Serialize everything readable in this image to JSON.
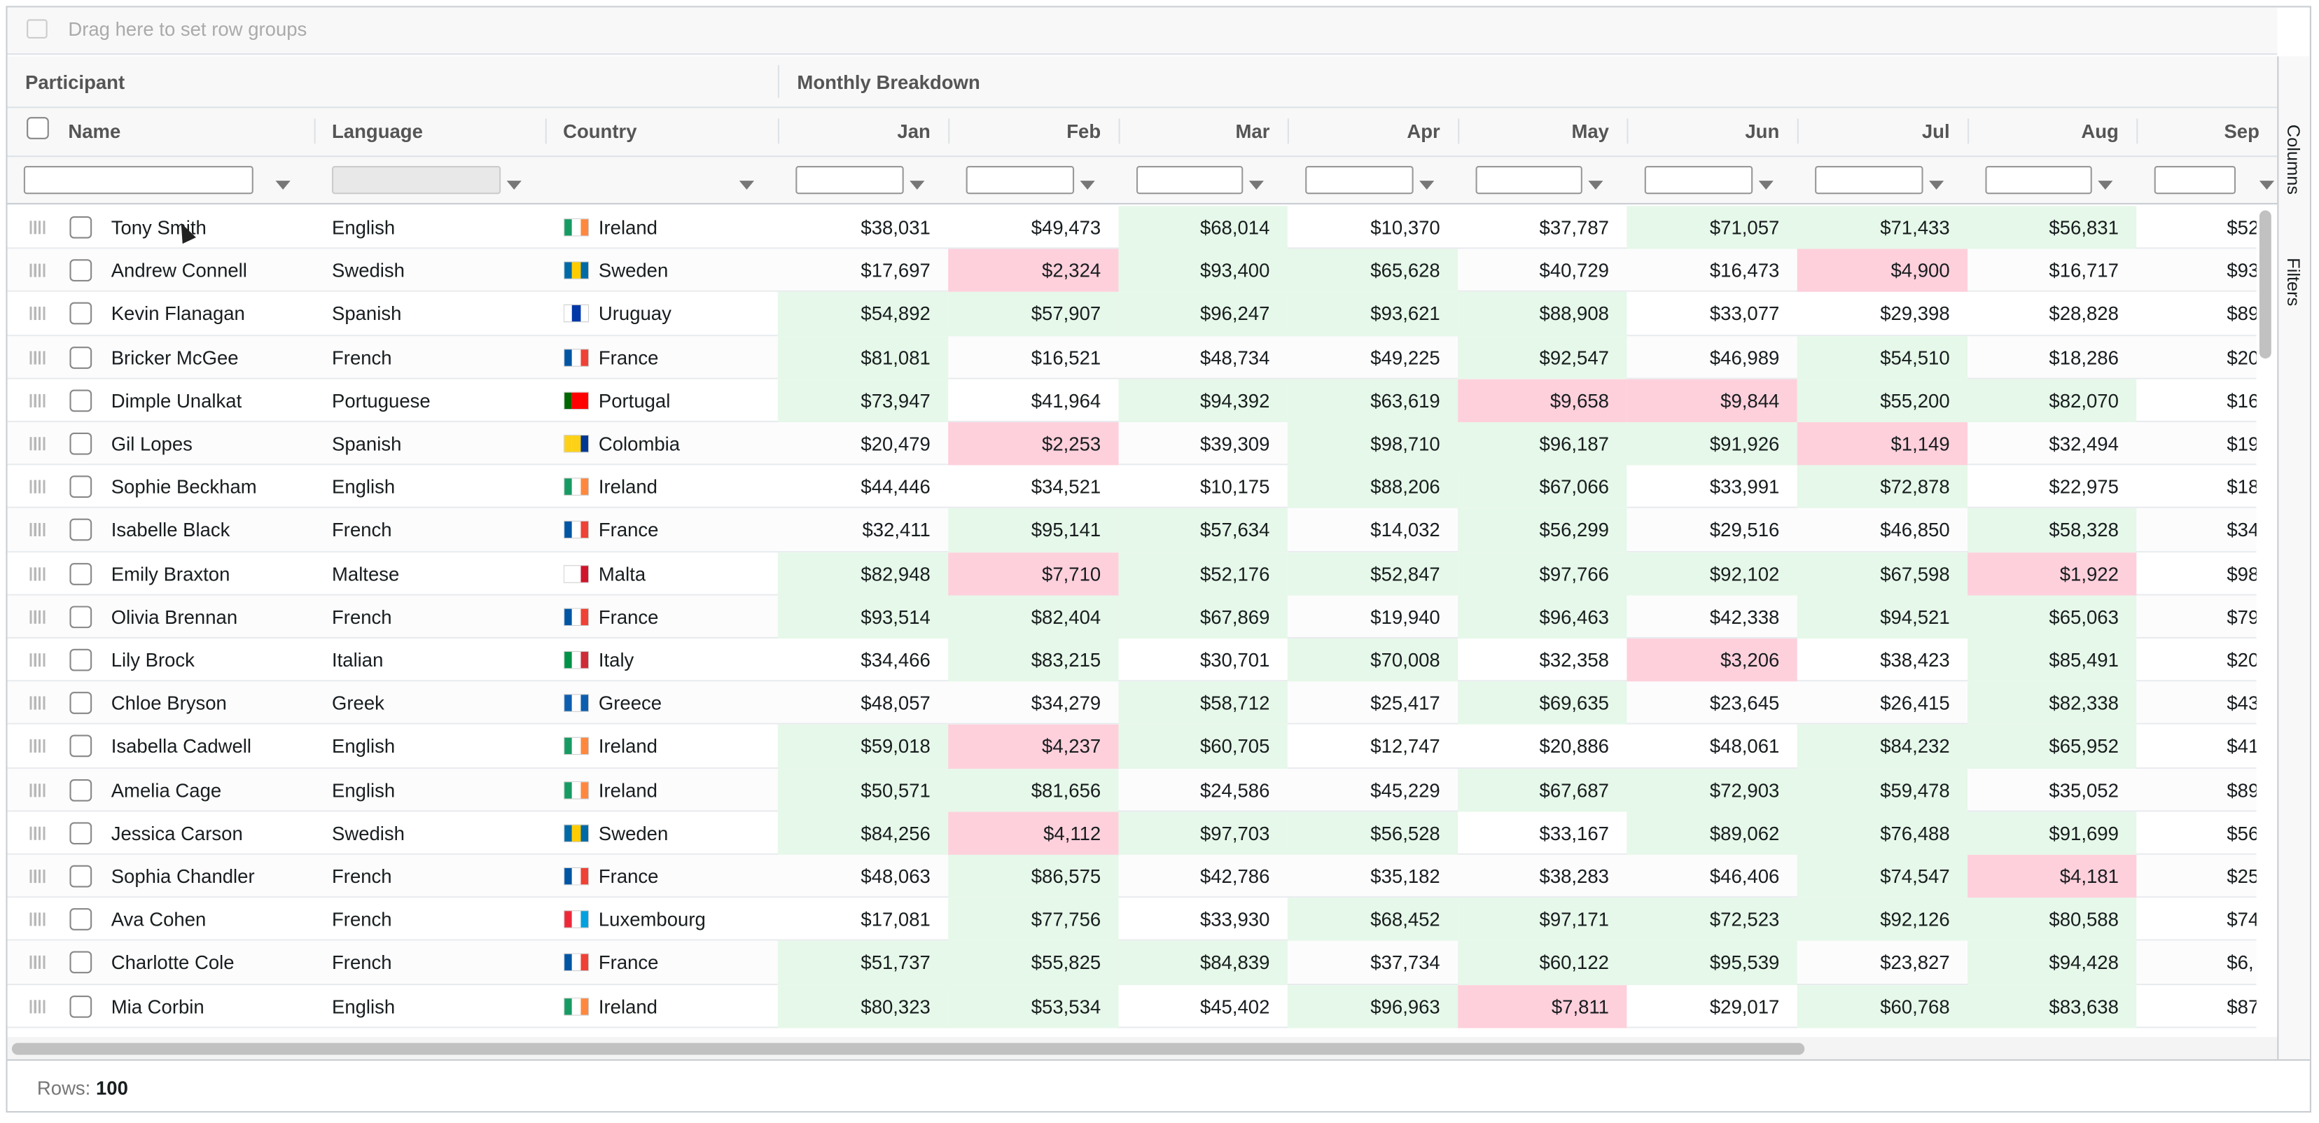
{
  "header": {
    "drop_zone_text": "Drag here to set row groups"
  },
  "side": {
    "tabs": [
      "Columns",
      "Filters"
    ]
  },
  "footer": {
    "label": "Rows:",
    "value": "100"
  },
  "flags": {
    "Ireland": [
      "#169b62",
      "#ffffff",
      "#ff883e"
    ],
    "Sweden": [
      "#006aa7",
      "#fecc00",
      "#006aa7"
    ],
    "Uruguay": [
      "#ffffff",
      "#0038a8",
      "#ffffff"
    ],
    "France": [
      "#0055a4",
      "#ffffff",
      "#ef4135"
    ],
    "Portugal": [
      "#006600",
      "#ff0000",
      "#ff0000"
    ],
    "Colombia": [
      "#fcd116",
      "#fcd116",
      "#003893"
    ],
    "Malta": [
      "#ffffff",
      "#ffffff",
      "#cf142b"
    ],
    "Italy": [
      "#009246",
      "#ffffff",
      "#ce2b37"
    ],
    "Greece": [
      "#0d5eaf",
      "#ffffff",
      "#0d5eaf"
    ],
    "Luxembourg": [
      "#ed2939",
      "#ffffff",
      "#00a1de"
    ]
  },
  "table": {
    "group_headers": [
      "Participant",
      "Monthly Breakdown"
    ],
    "columns": [
      "Name",
      "Language",
      "Country",
      "Jan",
      "Feb",
      "Mar",
      "Apr",
      "May",
      "Jun",
      "Jul",
      "Aug",
      "Sep"
    ],
    "rows": [
      {
        "name": "Tony Smith",
        "language": "English",
        "country": "Ireland",
        "months": [
          "$38,031",
          "$49,473",
          "$68,014",
          "$10,370",
          "$37,787",
          "$71,057",
          "$71,433",
          "$56,831",
          "$52,"
        ]
      },
      {
        "name": "Andrew Connell",
        "language": "Swedish",
        "country": "Sweden",
        "months": [
          "$17,697",
          "$2,324",
          "$93,400",
          "$65,628",
          "$40,729",
          "$16,473",
          "$4,900",
          "$16,717",
          "$93,"
        ]
      },
      {
        "name": "Kevin Flanagan",
        "language": "Spanish",
        "country": "Uruguay",
        "months": [
          "$54,892",
          "$57,907",
          "$96,247",
          "$93,621",
          "$88,908",
          "$33,077",
          "$29,398",
          "$28,828",
          "$89,"
        ]
      },
      {
        "name": "Bricker McGee",
        "language": "French",
        "country": "France",
        "months": [
          "$81,081",
          "$16,521",
          "$48,734",
          "$49,225",
          "$92,547",
          "$46,989",
          "$54,510",
          "$18,286",
          "$20,"
        ]
      },
      {
        "name": "Dimple Unalkat",
        "language": "Portuguese",
        "country": "Portugal",
        "months": [
          "$73,947",
          "$41,964",
          "$94,392",
          "$63,619",
          "$9,658",
          "$9,844",
          "$55,200",
          "$82,070",
          "$16,"
        ]
      },
      {
        "name": "Gil Lopes",
        "language": "Spanish",
        "country": "Colombia",
        "months": [
          "$20,479",
          "$2,253",
          "$39,309",
          "$98,710",
          "$96,187",
          "$91,926",
          "$1,149",
          "$32,494",
          "$19,"
        ]
      },
      {
        "name": "Sophie Beckham",
        "language": "English",
        "country": "Ireland",
        "months": [
          "$44,446",
          "$34,521",
          "$10,175",
          "$88,206",
          "$67,066",
          "$33,991",
          "$72,878",
          "$22,975",
          "$18,"
        ]
      },
      {
        "name": "Isabelle Black",
        "language": "French",
        "country": "France",
        "months": [
          "$32,411",
          "$95,141",
          "$57,634",
          "$14,032",
          "$56,299",
          "$29,516",
          "$46,850",
          "$58,328",
          "$34,"
        ]
      },
      {
        "name": "Emily Braxton",
        "language": "Maltese",
        "country": "Malta",
        "months": [
          "$82,948",
          "$7,710",
          "$52,176",
          "$52,847",
          "$97,766",
          "$92,102",
          "$67,598",
          "$1,922",
          "$98,"
        ]
      },
      {
        "name": "Olivia Brennan",
        "language": "French",
        "country": "France",
        "months": [
          "$93,514",
          "$82,404",
          "$67,869",
          "$19,940",
          "$96,463",
          "$42,338",
          "$94,521",
          "$65,063",
          "$79,"
        ]
      },
      {
        "name": "Lily Brock",
        "language": "Italian",
        "country": "Italy",
        "months": [
          "$34,466",
          "$83,215",
          "$30,701",
          "$70,008",
          "$32,358",
          "$3,206",
          "$38,423",
          "$85,491",
          "$20,"
        ]
      },
      {
        "name": "Chloe Bryson",
        "language": "Greek",
        "country": "Greece",
        "months": [
          "$48,057",
          "$34,279",
          "$58,712",
          "$25,417",
          "$69,635",
          "$23,645",
          "$26,415",
          "$82,338",
          "$43,"
        ]
      },
      {
        "name": "Isabella Cadwell",
        "language": "English",
        "country": "Ireland",
        "months": [
          "$59,018",
          "$4,237",
          "$60,705",
          "$12,747",
          "$20,886",
          "$48,061",
          "$84,232",
          "$65,952",
          "$41,"
        ]
      },
      {
        "name": "Amelia Cage",
        "language": "English",
        "country": "Ireland",
        "months": [
          "$50,571",
          "$81,656",
          "$24,586",
          "$45,229",
          "$67,687",
          "$72,903",
          "$59,478",
          "$35,052",
          "$89,"
        ]
      },
      {
        "name": "Jessica Carson",
        "language": "Swedish",
        "country": "Sweden",
        "months": [
          "$84,256",
          "$4,112",
          "$97,703",
          "$56,528",
          "$33,167",
          "$89,062",
          "$76,488",
          "$91,699",
          "$56,"
        ]
      },
      {
        "name": "Sophia Chandler",
        "language": "French",
        "country": "France",
        "months": [
          "$48,063",
          "$86,575",
          "$42,786",
          "$35,182",
          "$38,283",
          "$46,406",
          "$74,547",
          "$4,181",
          "$25,"
        ]
      },
      {
        "name": "Ava Cohen",
        "language": "French",
        "country": "Luxembourg",
        "months": [
          "$17,081",
          "$77,756",
          "$33,930",
          "$68,452",
          "$97,171",
          "$72,523",
          "$92,126",
          "$80,588",
          "$74,"
        ]
      },
      {
        "name": "Charlotte Cole",
        "language": "French",
        "country": "France",
        "months": [
          "$51,737",
          "$55,825",
          "$84,839",
          "$37,734",
          "$60,122",
          "$95,539",
          "$23,827",
          "$94,428",
          "$6,"
        ]
      },
      {
        "name": "Mia Corbin",
        "language": "English",
        "country": "Ireland",
        "months": [
          "$80,323",
          "$53,534",
          "$45,402",
          "$96,963",
          "$7,811",
          "$29,017",
          "$60,768",
          "$83,638",
          "$87,"
        ]
      }
    ]
  }
}
